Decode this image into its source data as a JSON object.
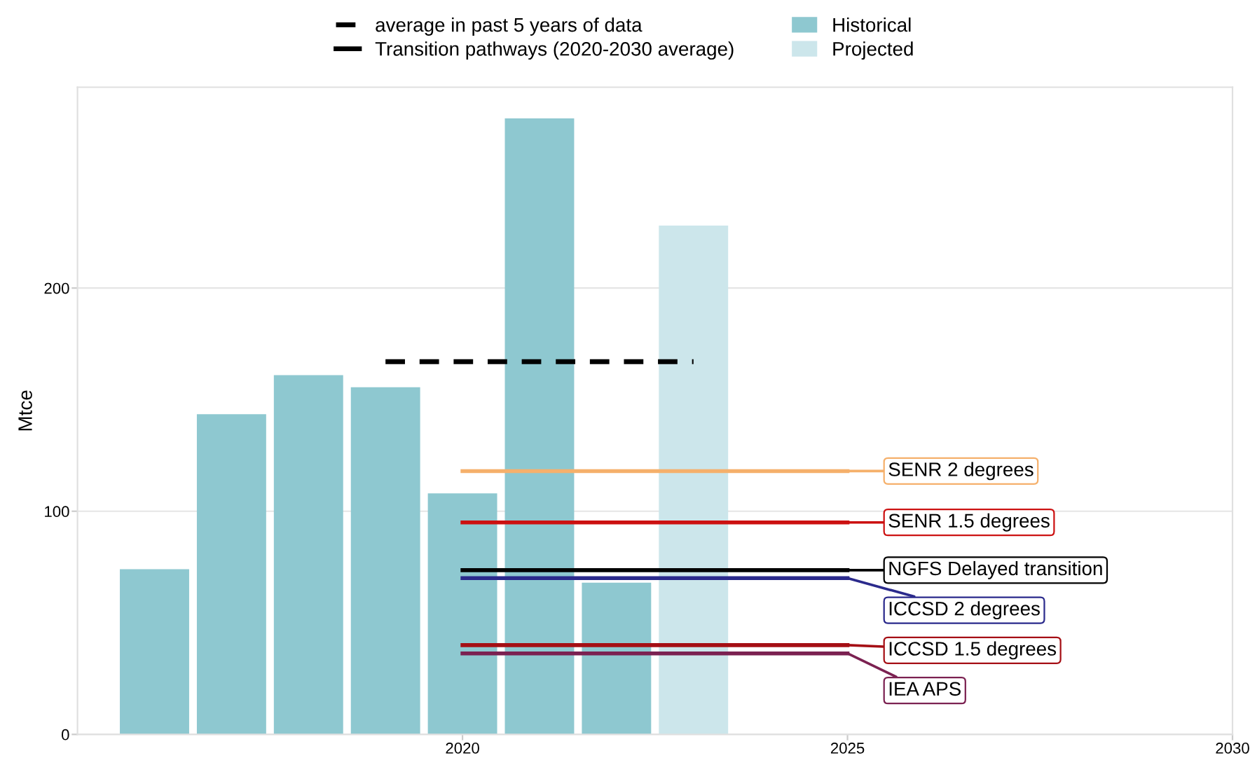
{
  "chart_data": {
    "type": "bar",
    "ylabel": "Mtce",
    "xlim": [
      2015,
      2030
    ],
    "xticks": [
      2020,
      2025,
      2030
    ],
    "ylim": [
      0,
      290
    ],
    "yticks": [
      0,
      100,
      200
    ],
    "grid": "y",
    "legend": "top",
    "annotations": [
      "Transition pathways (2020-2030 average)"
    ],
    "series": [
      {
        "name": "Historical",
        "color": "#8ec8d0",
        "x": [
          2016,
          2017,
          2018,
          2019,
          2020,
          2021,
          2022
        ],
        "values": [
          74,
          143.5,
          161,
          155.6,
          108,
          276,
          68
        ]
      },
      {
        "name": "Projected",
        "color": "#cce6eb",
        "x": [
          2023
        ],
        "values": [
          228
        ]
      },
      {
        "name": "average in past 5 years of data",
        "type": "line",
        "line_style": "dashed",
        "color": "#000000",
        "x": [
          2019,
          2023
        ],
        "values": [
          167,
          167
        ]
      },
      {
        "name": "SENR 2 degrees",
        "type": "line",
        "line_style": "solid",
        "color": "#f5b06b",
        "x": [
          2020,
          2025
        ],
        "values": [
          118,
          118
        ]
      },
      {
        "name": "SENR 1.5 degrees",
        "type": "line",
        "line_style": "solid",
        "color": "#cc1111",
        "x": [
          2020,
          2025
        ],
        "values": [
          95,
          95
        ]
      },
      {
        "name": "NGFS Delayed transition",
        "type": "line",
        "line_style": "solid",
        "color": "#000000",
        "x": [
          2020,
          2025
        ],
        "values": [
          73.6,
          73.6
        ]
      },
      {
        "name": "ICCSD 2 degrees",
        "type": "line",
        "line_style": "solid",
        "color": "#2b2a8c",
        "x": [
          2020,
          2025
        ],
        "values": [
          70,
          70
        ]
      },
      {
        "name": "ICCSD 1.5 degrees",
        "type": "line",
        "line_style": "solid",
        "color": "#a50f15",
        "x": [
          2020,
          2025
        ],
        "values": [
          40,
          40
        ]
      },
      {
        "name": "IEA APS",
        "type": "line",
        "line_style": "solid",
        "color": "#7b2151",
        "x": [
          2020,
          2025
        ],
        "values": [
          36.3,
          36.3
        ]
      }
    ]
  }
}
